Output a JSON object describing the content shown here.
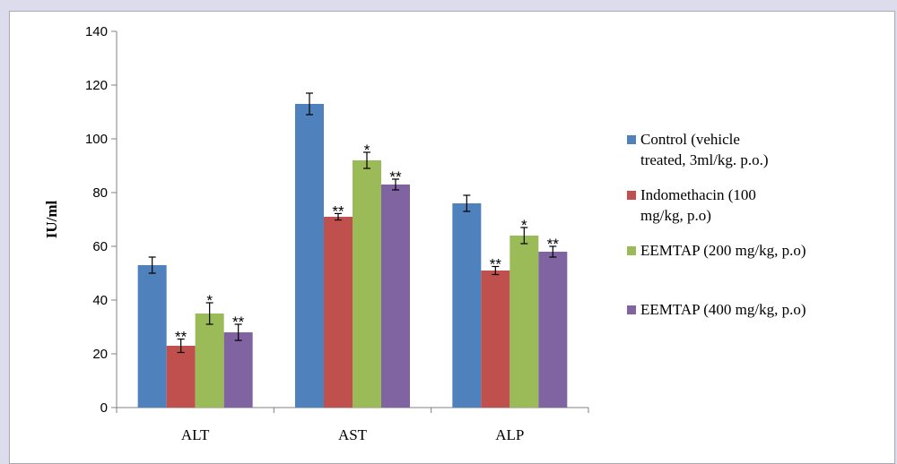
{
  "chart_data": {
    "type": "bar",
    "title": "",
    "xlabel": "",
    "ylabel": "IU/ml",
    "ylim": [
      0,
      140
    ],
    "yticks": [
      0,
      20,
      40,
      60,
      80,
      100,
      120,
      140
    ],
    "categories": [
      "ALT",
      "AST",
      "ALP"
    ],
    "grid": false,
    "legend_position": "right",
    "series": [
      {
        "name": "Control (vehicle treated, 3ml/kg. p.o.)",
        "legend_lines": [
          "Control (vehicle",
          "treated, 3ml/kg. p.o.)"
        ],
        "color": "#4f81bd",
        "values": [
          53,
          113,
          76
        ],
        "errors": [
          3,
          4,
          3
        ],
        "significance": [
          "",
          "",
          ""
        ]
      },
      {
        "name": "Indomethacin (100 mg/kg, p.o)",
        "legend_lines": [
          "Indomethacin (100",
          "mg/kg, p.o)"
        ],
        "color": "#c0504d",
        "values": [
          23,
          71,
          51
        ],
        "errors": [
          2.5,
          1.2,
          1.5
        ],
        "significance": [
          "**",
          "**",
          "**"
        ]
      },
      {
        "name": "EEMTAP (200 mg/kg, p.o)",
        "legend_lines": [
          "EEMTAP (200 mg/kg, p.o)"
        ],
        "color": "#9bbb59",
        "values": [
          35,
          92,
          64
        ],
        "errors": [
          4,
          3,
          3
        ],
        "significance": [
          "*",
          "*",
          "*"
        ]
      },
      {
        "name": "EEMTAP (400 mg/kg, p.o)",
        "legend_lines": [
          "EEMTAP (400 mg/kg, p.o)"
        ],
        "color": "#8064a2",
        "values": [
          28,
          83,
          58
        ],
        "errors": [
          3,
          2,
          2
        ],
        "significance": [
          "**",
          "**",
          "**"
        ]
      }
    ]
  }
}
